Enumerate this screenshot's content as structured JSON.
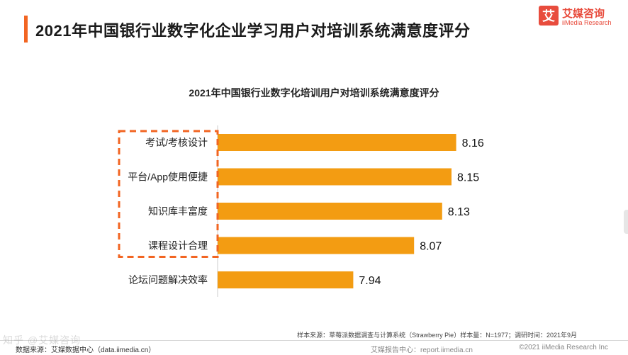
{
  "header": {
    "title": "2021年中国银行业数字化企业学习用户对培训系统满意度评分"
  },
  "logo": {
    "mark": "艾",
    "name_cn": "艾媒咨询",
    "name_en": "iiMedia Research"
  },
  "colors": {
    "accent": "#f26522",
    "bar": "#f39c12",
    "highlight_box": "#f26522"
  },
  "chart_data": {
    "type": "bar",
    "orientation": "horizontal",
    "title": "2021年中国银行业数字化培训用户对培训系统满意度评分",
    "categories": [
      "考试/考核设计",
      "平台/App使用便捷",
      "知识库丰富度",
      "课程设计合理",
      "论坛问题解决效率"
    ],
    "values": [
      8.16,
      8.15,
      8.13,
      8.07,
      7.94
    ],
    "value_labels": [
      "8.16",
      "8.15",
      "8.13",
      "8.07",
      "7.94"
    ],
    "highlighted_categories": [
      "考试/考核设计",
      "平台/App使用便捷",
      "知识库丰富度",
      "课程设计合理"
    ],
    "xlim": [
      7.65,
      8.2
    ],
    "xlabel": "",
    "ylabel": "",
    "grid": false,
    "legend": "none"
  },
  "footer": {
    "source_note": "样本来源：草莓派数据调查与计算系统（Strawberry Pie）样本量：N=1977；调研时间：2021年9月",
    "data_source": "数据来源：艾媒数据中心（data.iimedia.cn）",
    "report_center": "艾媒报告中心：report.iimedia.cn",
    "copyright": "©2021  iiMedia Research  Inc",
    "watermark": "知乎 @艾媒咨询"
  }
}
